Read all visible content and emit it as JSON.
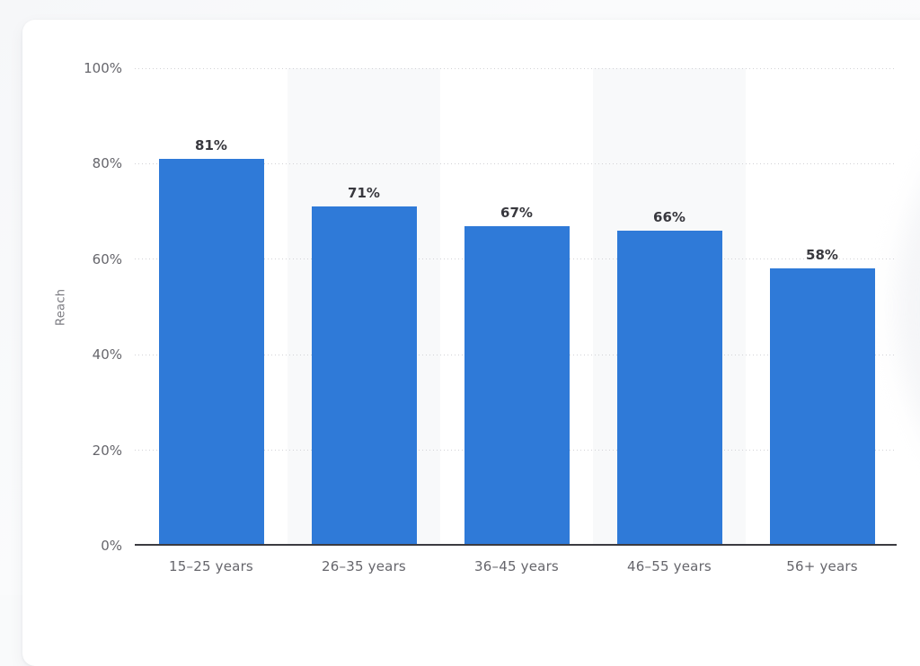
{
  "page": {
    "background_color": "#f9fafb",
    "card_color": "#ffffff"
  },
  "chart_data": {
    "type": "bar",
    "title": "",
    "categories": [
      "15–25 years",
      "26–35 years",
      "36–45 years",
      "46–55 years",
      "56+ years"
    ],
    "values": [
      81,
      71,
      67,
      66,
      58
    ],
    "value_labels": [
      "81%",
      "71%",
      "67%",
      "66%",
      "58%"
    ],
    "xlabel": "",
    "ylabel": "Reach",
    "ylim": [
      0,
      100
    ],
    "yticks": [
      0,
      20,
      40,
      60,
      80,
      100
    ],
    "ytick_labels": [
      "0%",
      "20%",
      "40%",
      "60%",
      "80%",
      "100%"
    ],
    "grid": "horizontal-dotted",
    "legend": "none",
    "bar_color": "#2f7ad8",
    "alternating_band_color": "#f8f9fa",
    "axis_line_color": "#3b3b41",
    "tick_label_color": "#66666c",
    "value_label_color": "#38383e"
  }
}
